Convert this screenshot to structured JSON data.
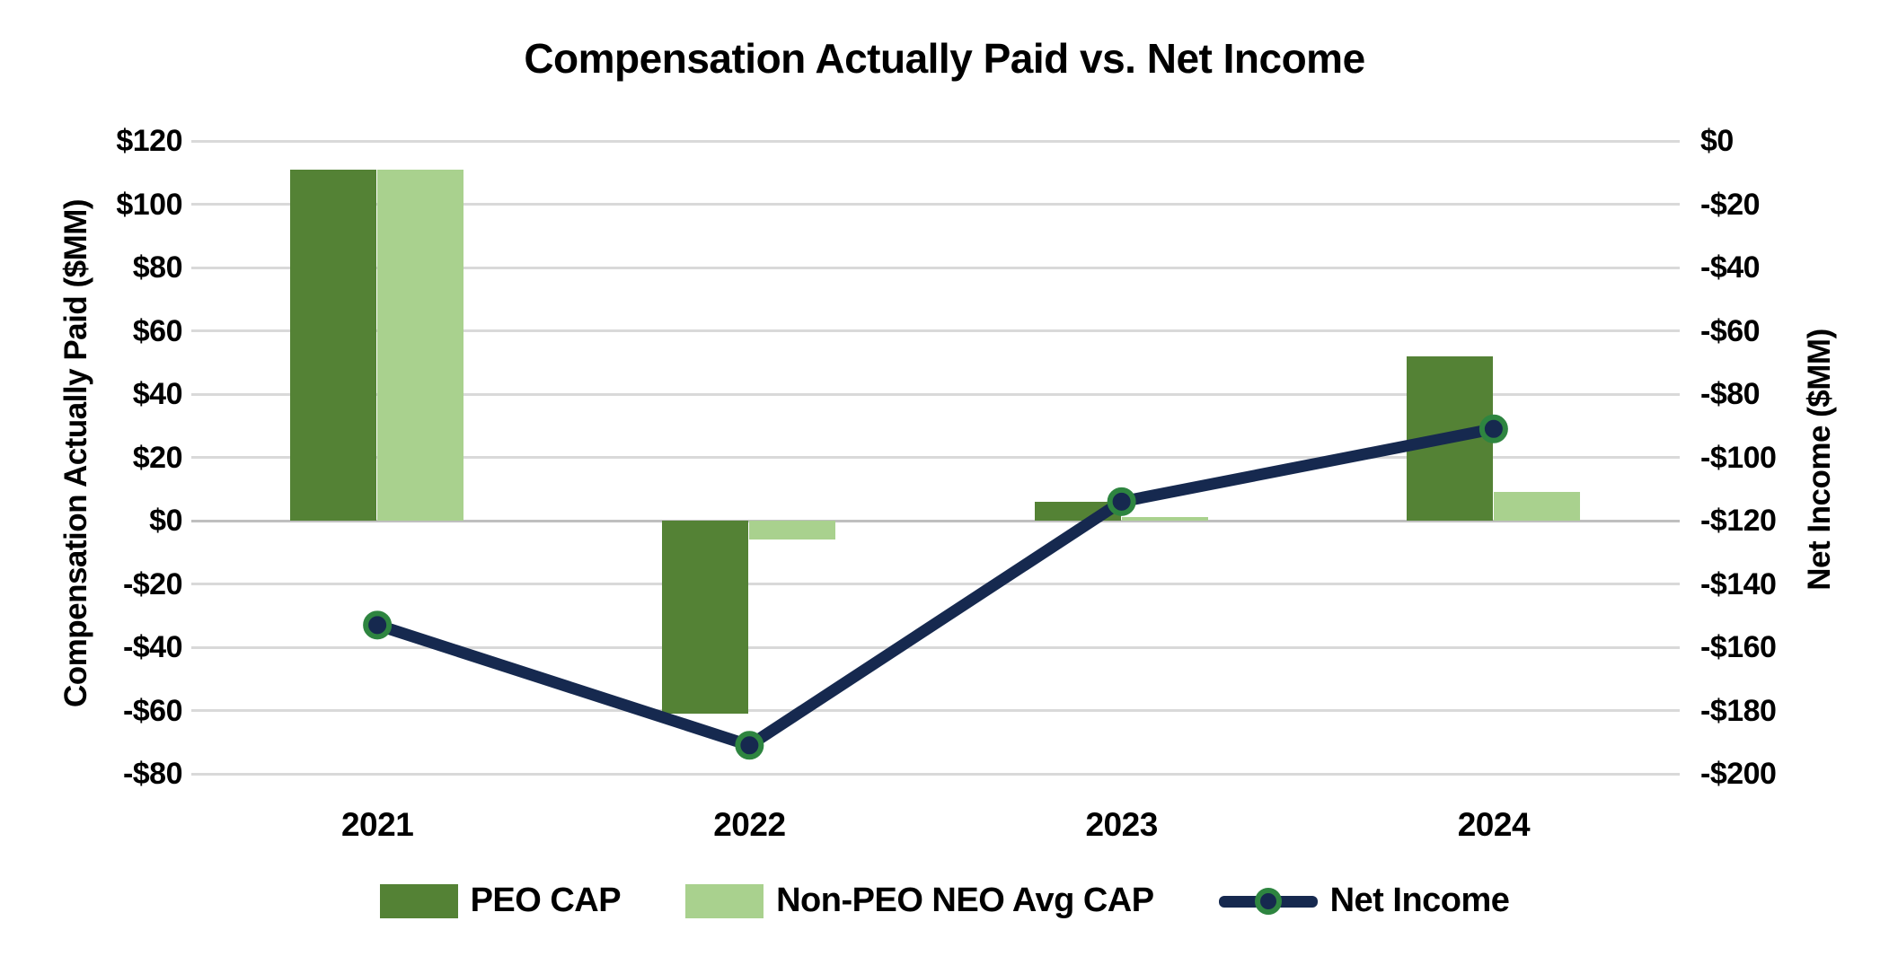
{
  "chart_data": {
    "type": "bar-line-combo",
    "title": "Compensation Actually Paid vs. Net Income",
    "categories": [
      "2021",
      "2022",
      "2023",
      "2024"
    ],
    "series": [
      {
        "name": "PEO CAP",
        "type": "bar",
        "axis": "left",
        "color": "#548235",
        "values": [
          111,
          -61,
          6,
          52
        ]
      },
      {
        "name": "Non-PEO NEO Avg CAP",
        "type": "bar",
        "axis": "left",
        "color": "#a9d18e",
        "values": [
          111,
          -6,
          1,
          9
        ]
      },
      {
        "name": "Net Income",
        "type": "line",
        "axis": "right",
        "color": "#16294f",
        "marker_fill": "#16294f",
        "marker_border": "#2e8540",
        "values": [
          -153,
          -191,
          -114,
          -91
        ]
      }
    ],
    "left_axis": {
      "title": "Compensation Actually Paid ($MM)",
      "min": -80,
      "max": 120,
      "step": 20,
      "tick_labels": [
        "$120",
        "$100",
        "$80",
        "$60",
        "$40",
        "$20",
        "$0",
        "-$20",
        "-$40",
        "-$60",
        "-$80"
      ]
    },
    "right_axis": {
      "title": "Net Income ($MM)",
      "min": -200,
      "max": 0,
      "step": 20,
      "tick_labels": [
        "$0",
        "-$20",
        "-$40",
        "-$60",
        "-$80",
        "-$100",
        "-$120",
        "-$140",
        "-$160",
        "-$180",
        "-$200"
      ]
    },
    "legend": {
      "position": "bottom",
      "entries": [
        "PEO CAP",
        "Non-PEO NEO Avg CAP",
        "Net Income"
      ]
    },
    "grid": {
      "visible": true,
      "color": "#d9d9d9",
      "zero_line_color": "#bfbfbf"
    }
  }
}
